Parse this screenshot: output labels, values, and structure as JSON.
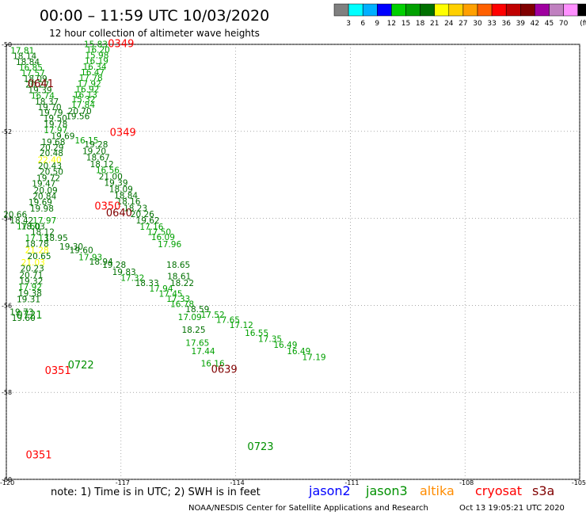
{
  "header": {
    "title": "00:00  –  11:59 UTC 10/03/2020",
    "subtitle": "12 hour collection of altimeter wave heights"
  },
  "colorbar": {
    "unit_label": "(ft)",
    "colors": [
      "#808080",
      "#00ffff",
      "#00b0ff",
      "#0000ff",
      "#00d000",
      "#00a000",
      "#007000",
      "#ffff00",
      "#ffd000",
      "#ffa000",
      "#ff6000",
      "#ff0000",
      "#c00000",
      "#800000",
      "#a000a0",
      "#c080c0",
      "#ff90ff",
      "#000000"
    ],
    "labels": [
      "3",
      "6",
      "9",
      "12",
      "15",
      "18",
      "21",
      "24",
      "27",
      "30",
      "33",
      "36",
      "39",
      "42",
      "45",
      "70"
    ]
  },
  "axes": {
    "lat_ticks": [
      {
        "lat": -50,
        "label": "-50"
      },
      {
        "lat": -52,
        "label": "-52"
      },
      {
        "lat": -54,
        "label": "-54"
      },
      {
        "lat": -56,
        "label": "-56"
      },
      {
        "lat": -58,
        "label": "-58"
      },
      {
        "lat": -60,
        "label": "-60"
      }
    ],
    "lon_ticks": [
      {
        "lon": -120,
        "label": "-120"
      },
      {
        "lon": -117,
        "label": "-117"
      },
      {
        "lon": -114,
        "label": "-114"
      },
      {
        "lon": -111,
        "label": "-111"
      },
      {
        "lon": -108,
        "label": "-108"
      },
      {
        "lon": -105,
        "label": "-105"
      }
    ],
    "lat_range": [
      -60,
      -50
    ],
    "lon_range": [
      -120,
      -105
    ],
    "grid": "dotted"
  },
  "footer": {
    "note": "note:  1) Time is in UTC;  2) SWH is in feet",
    "legend": [
      {
        "name": "jason2",
        "color": "#0000ff"
      },
      {
        "name": "jason3",
        "color": "#009000"
      },
      {
        "name": "altika",
        "color": "#ff8c00"
      },
      {
        "name": "cryosat",
        "color": "#ff0000"
      },
      {
        "name": "s3a",
        "color": "#800000"
      }
    ],
    "credit": "NOAA/NESDIS Center for Satellite Applications and Research",
    "timestamp": "Oct 13 19:05:21 UTC 2020"
  },
  "chart_data": {
    "type": "scatter",
    "title": "00:00  –  11:59 UTC 10/03/2020",
    "subtitle": "12 hour collection of altimeter wave heights",
    "xlim": [
      -120,
      -105
    ],
    "ylim": [
      -60,
      -50
    ],
    "unit": "ft",
    "time_labels": [
      {
        "text": "0349",
        "lon": -117.0,
        "lat": -50.06,
        "color": "#ff0000"
      },
      {
        "text": "0641",
        "lon": -119.1,
        "lat": -50.98,
        "color": "#800000"
      },
      {
        "text": "0349",
        "lon": -116.95,
        "lat": -52.1,
        "color": "#ff0000"
      },
      {
        "text": "0350",
        "lon": -117.35,
        "lat": -53.8,
        "color": "#ff0000"
      },
      {
        "text": "0640",
        "lon": -117.05,
        "lat": -53.95,
        "color": "#800000"
      },
      {
        "text": "0721",
        "lon": -119.4,
        "lat": -56.3,
        "color": "#009000"
      },
      {
        "text": "0722",
        "lon": -118.05,
        "lat": -57.45,
        "color": "#009000"
      },
      {
        "text": "0351",
        "lon": -118.65,
        "lat": -57.58,
        "color": "#ff0000"
      },
      {
        "text": "0639",
        "lon": -114.3,
        "lat": -57.55,
        "color": "#800000"
      },
      {
        "text": "0723",
        "lon": -113.35,
        "lat": -59.33,
        "color": "#009000"
      },
      {
        "text": "0351",
        "lon": -119.15,
        "lat": -59.52,
        "color": "#ff0000"
      }
    ],
    "points": [
      {
        "v": "15.83",
        "lon": -117.66,
        "lat": -50.06,
        "color": "#00a000"
      },
      {
        "v": "16.20",
        "lon": -117.6,
        "lat": -50.19,
        "color": "#00a000"
      },
      {
        "v": "15.98",
        "lon": -117.63,
        "lat": -50.32,
        "color": "#00a000"
      },
      {
        "v": "16.19",
        "lon": -117.64,
        "lat": -50.45,
        "color": "#00a000"
      },
      {
        "v": "16.34",
        "lon": -117.69,
        "lat": -50.58,
        "color": "#00a000"
      },
      {
        "v": "16.47",
        "lon": -117.74,
        "lat": -50.71,
        "color": "#00a000"
      },
      {
        "v": "17.78",
        "lon": -117.79,
        "lat": -50.84,
        "color": "#00a000"
      },
      {
        "v": "17.92",
        "lon": -117.83,
        "lat": -50.97,
        "color": "#00a000"
      },
      {
        "v": "16.92",
        "lon": -117.88,
        "lat": -51.1,
        "color": "#00a000"
      },
      {
        "v": "16.13",
        "lon": -117.93,
        "lat": -51.23,
        "color": "#00a000"
      },
      {
        "v": "15.32",
        "lon": -117.98,
        "lat": -51.33,
        "color": "#00a000"
      },
      {
        "v": "17.84",
        "lon": -117.99,
        "lat": -51.46,
        "color": "#00a000"
      },
      {
        "v": "20.70",
        "lon": -118.08,
        "lat": -51.6,
        "color": "#007000"
      },
      {
        "v": "19.56",
        "lon": -118.13,
        "lat": -51.72,
        "color": "#007000"
      },
      {
        "v": "17.81",
        "lon": -119.58,
        "lat": -50.21,
        "color": "#00a000"
      },
      {
        "v": "18.14",
        "lon": -119.52,
        "lat": -50.34,
        "color": "#007000"
      },
      {
        "v": "18.84",
        "lon": -119.44,
        "lat": -50.47,
        "color": "#007000"
      },
      {
        "v": "16.85",
        "lon": -119.36,
        "lat": -50.6,
        "color": "#00a000"
      },
      {
        "v": "17.57",
        "lon": -119.3,
        "lat": -50.73,
        "color": "#00a000"
      },
      {
        "v": "18.09",
        "lon": -119.24,
        "lat": -50.86,
        "color": "#007000"
      },
      {
        "v": "20.27",
        "lon": -119.19,
        "lat": -50.99,
        "color": "#007000"
      },
      {
        "v": "19.39",
        "lon": -119.12,
        "lat": -51.12,
        "color": "#007000"
      },
      {
        "v": "16.74",
        "lon": -119.05,
        "lat": -51.25,
        "color": "#00a000"
      },
      {
        "v": "18.37",
        "lon": -118.94,
        "lat": -51.38,
        "color": "#007000"
      },
      {
        "v": "19.70",
        "lon": -118.87,
        "lat": -51.51,
        "color": "#007000"
      },
      {
        "v": "19.79",
        "lon": -118.83,
        "lat": -51.64,
        "color": "#007000"
      },
      {
        "v": "19.50",
        "lon": -118.72,
        "lat": -51.77,
        "color": "#007000"
      },
      {
        "v": "19.78",
        "lon": -118.71,
        "lat": -51.9,
        "color": "#007000"
      },
      {
        "v": "17.97",
        "lon": -118.71,
        "lat": -52.04,
        "color": "#00a000"
      },
      {
        "v": "19.69",
        "lon": -118.52,
        "lat": -52.18,
        "color": "#007000"
      },
      {
        "v": "19.68",
        "lon": -118.77,
        "lat": -52.31,
        "color": "#007000"
      },
      {
        "v": "20.29",
        "lon": -118.81,
        "lat": -52.44,
        "color": "#007000"
      },
      {
        "v": "20.48",
        "lon": -118.82,
        "lat": -52.57,
        "color": "#007000"
      },
      {
        "v": "22.40",
        "lon": -118.87,
        "lat": -52.72,
        "color": "#ffff00"
      },
      {
        "v": "20.43",
        "lon": -118.86,
        "lat": -52.86,
        "color": "#007000"
      },
      {
        "v": "20.50",
        "lon": -118.82,
        "lat": -53.0,
        "color": "#007000"
      },
      {
        "v": "19.72",
        "lon": -118.9,
        "lat": -53.14,
        "color": "#007000"
      },
      {
        "v": "19.47",
        "lon": -119.02,
        "lat": -53.27,
        "color": "#007000"
      },
      {
        "v": "20.09",
        "lon": -118.97,
        "lat": -53.42,
        "color": "#007000"
      },
      {
        "v": "20.84",
        "lon": -119.0,
        "lat": -53.56,
        "color": "#007000"
      },
      {
        "v": "19.69",
        "lon": -119.11,
        "lat": -53.7,
        "color": "#007000"
      },
      {
        "v": "19.98",
        "lon": -119.07,
        "lat": -53.84,
        "color": "#007000"
      },
      {
        "v": "20.66",
        "lon": -119.77,
        "lat": -53.98,
        "color": "#007000"
      },
      {
        "v": "18.42",
        "lon": -119.6,
        "lat": -54.12,
        "color": "#007000"
      },
      {
        "v": "17.97",
        "lon": -119.0,
        "lat": -54.12,
        "color": "#00a000"
      },
      {
        "v": "17.60",
        "lon": -119.42,
        "lat": -54.25,
        "color": "#00a000"
      },
      {
        "v": "18.03",
        "lon": -119.3,
        "lat": -54.25,
        "color": "#007000"
      },
      {
        "v": "18.12",
        "lon": -119.05,
        "lat": -54.38,
        "color": "#007000"
      },
      {
        "v": "17.13",
        "lon": -119.2,
        "lat": -54.52,
        "color": "#00a000"
      },
      {
        "v": "18.95",
        "lon": -118.7,
        "lat": -54.52,
        "color": "#007000"
      },
      {
        "v": "18.78",
        "lon": -119.2,
        "lat": -54.65,
        "color": "#007000"
      },
      {
        "v": "19.30",
        "lon": -118.3,
        "lat": -54.72,
        "color": "#007000"
      },
      {
        "v": "19.60",
        "lon": -118.04,
        "lat": -54.8,
        "color": "#007000"
      },
      {
        "v": "21.28",
        "lon": -119.2,
        "lat": -54.8,
        "color": "#ffff00"
      },
      {
        "v": "20.65",
        "lon": -119.14,
        "lat": -54.94,
        "color": "#007000"
      },
      {
        "v": "21.03",
        "lon": -119.3,
        "lat": -55.08,
        "color": "#ffff00"
      },
      {
        "v": "20.23",
        "lon": -119.32,
        "lat": -55.22,
        "color": "#007000"
      },
      {
        "v": "20.71",
        "lon": -119.35,
        "lat": -55.37,
        "color": "#007000"
      },
      {
        "v": "19.32",
        "lon": -119.35,
        "lat": -55.51,
        "color": "#007000"
      },
      {
        "v": "17.92",
        "lon": -119.38,
        "lat": -55.65,
        "color": "#00a000"
      },
      {
        "v": "19.38",
        "lon": -119.38,
        "lat": -55.79,
        "color": "#007000"
      },
      {
        "v": "19.31",
        "lon": -119.42,
        "lat": -55.93,
        "color": "#007000"
      },
      {
        "v": "19.73",
        "lon": -119.6,
        "lat": -56.22,
        "color": "#007000"
      },
      {
        "v": "19.60",
        "lon": -119.55,
        "lat": -56.36,
        "color": "#007000"
      },
      {
        "v": "16.15",
        "lon": -117.9,
        "lat": -52.28,
        "color": "#00a000"
      },
      {
        "v": "19.28",
        "lon": -117.65,
        "lat": -52.37,
        "color": "#007000"
      },
      {
        "v": "19.20",
        "lon": -117.7,
        "lat": -52.52,
        "color": "#007000"
      },
      {
        "v": "18.67",
        "lon": -117.6,
        "lat": -52.67,
        "color": "#007000"
      },
      {
        "v": "18.12",
        "lon": -117.5,
        "lat": -52.82,
        "color": "#007000"
      },
      {
        "v": "16.56",
        "lon": -117.35,
        "lat": -52.96,
        "color": "#00a000"
      },
      {
        "v": "21.00",
        "lon": -117.27,
        "lat": -53.11,
        "color": "#007000"
      },
      {
        "v": "19.39",
        "lon": -117.13,
        "lat": -53.25,
        "color": "#007000"
      },
      {
        "v": "18.09",
        "lon": -117.0,
        "lat": -53.4,
        "color": "#007000"
      },
      {
        "v": "18.84",
        "lon": -116.87,
        "lat": -53.54,
        "color": "#007000"
      },
      {
        "v": "18.16",
        "lon": -116.8,
        "lat": -53.68,
        "color": "#007000"
      },
      {
        "v": "18.23",
        "lon": -116.62,
        "lat": -53.83,
        "color": "#007000"
      },
      {
        "v": "20.26",
        "lon": -116.44,
        "lat": -53.97,
        "color": "#007000"
      },
      {
        "v": "19.62",
        "lon": -116.3,
        "lat": -54.12,
        "color": "#007000"
      },
      {
        "v": "17.16",
        "lon": -116.2,
        "lat": -54.26,
        "color": "#00a000"
      },
      {
        "v": "17.50",
        "lon": -116.0,
        "lat": -54.38,
        "color": "#00a000"
      },
      {
        "v": "16.09",
        "lon": -115.9,
        "lat": -54.5,
        "color": "#00a000"
      },
      {
        "v": "17.96",
        "lon": -115.73,
        "lat": -54.66,
        "color": "#00a000"
      },
      {
        "v": "17.93",
        "lon": -117.8,
        "lat": -54.96,
        "color": "#00a000"
      },
      {
        "v": "18.94",
        "lon": -117.52,
        "lat": -55.06,
        "color": "#007000"
      },
      {
        "v": "19.28",
        "lon": -117.18,
        "lat": -55.14,
        "color": "#007000"
      },
      {
        "v": "18.65",
        "lon": -115.5,
        "lat": -55.14,
        "color": "#007000"
      },
      {
        "v": "19.83",
        "lon": -116.92,
        "lat": -55.3,
        "color": "#007000"
      },
      {
        "v": "18.61",
        "lon": -115.48,
        "lat": -55.4,
        "color": "#007000"
      },
      {
        "v": "17.32",
        "lon": -116.7,
        "lat": -55.44,
        "color": "#00a000"
      },
      {
        "v": "18.33",
        "lon": -116.32,
        "lat": -55.56,
        "color": "#007000"
      },
      {
        "v": "18.22",
        "lon": -115.4,
        "lat": -55.56,
        "color": "#007000"
      },
      {
        "v": "17.94",
        "lon": -115.95,
        "lat": -55.68,
        "color": "#00a000"
      },
      {
        "v": "17.45",
        "lon": -115.7,
        "lat": -55.8,
        "color": "#00a000"
      },
      {
        "v": "17.33",
        "lon": -115.5,
        "lat": -55.92,
        "color": "#00a000"
      },
      {
        "v": "16.78",
        "lon": -115.4,
        "lat": -56.04,
        "color": "#00a000"
      },
      {
        "v": "18.59",
        "lon": -115.0,
        "lat": -56.16,
        "color": "#007000"
      },
      {
        "v": "17.52",
        "lon": -114.6,
        "lat": -56.28,
        "color": "#00a000"
      },
      {
        "v": "17.09",
        "lon": -115.2,
        "lat": -56.34,
        "color": "#00a000"
      },
      {
        "v": "17.65",
        "lon": -114.2,
        "lat": -56.4,
        "color": "#00a000"
      },
      {
        "v": "17.12",
        "lon": -113.85,
        "lat": -56.52,
        "color": "#00a000"
      },
      {
        "v": "18.25",
        "lon": -115.1,
        "lat": -56.63,
        "color": "#007000"
      },
      {
        "v": "16.55",
        "lon": -113.45,
        "lat": -56.7,
        "color": "#00a000"
      },
      {
        "v": "17.35",
        "lon": -113.1,
        "lat": -56.84,
        "color": "#00a000"
      },
      {
        "v": "17.65",
        "lon": -115.0,
        "lat": -56.93,
        "color": "#00a000"
      },
      {
        "v": "16.49",
        "lon": -112.7,
        "lat": -56.98,
        "color": "#00a000"
      },
      {
        "v": "17.44",
        "lon": -114.85,
        "lat": -57.12,
        "color": "#00a000"
      },
      {
        "v": "16.49",
        "lon": -112.35,
        "lat": -57.12,
        "color": "#00a000"
      },
      {
        "v": "17.19",
        "lon": -111.95,
        "lat": -57.26,
        "color": "#00a000"
      },
      {
        "v": "16.16",
        "lon": -114.6,
        "lat": -57.4,
        "color": "#00a000"
      }
    ]
  }
}
